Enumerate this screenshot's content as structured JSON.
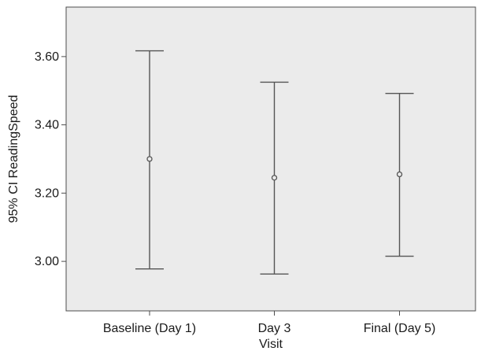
{
  "chart_data": {
    "type": "errorbar",
    "xlabel": "Visit",
    "ylabel": "95% CI ReadingSpeed",
    "categories": [
      "Baseline (Day 1)",
      "Day 3",
      "Final (Day 5)"
    ],
    "series": [
      {
        "mean": [
          3.3,
          3.245,
          3.255
        ],
        "lower": [
          2.978,
          2.963,
          3.015
        ],
        "upper": [
          3.617,
          3.525,
          3.492
        ]
      }
    ],
    "yticks": [
      3.0,
      3.2,
      3.4,
      3.6
    ],
    "ytick_labels": [
      "3.00",
      "3.20",
      "3.40",
      "3.60"
    ],
    "ylim": [
      2.855,
      3.745
    ],
    "grid": false,
    "colors": {
      "plot_background": "#ebebeb",
      "axes": "#4d4d4d",
      "errorbar": "#555555",
      "marker": "#555555"
    }
  }
}
